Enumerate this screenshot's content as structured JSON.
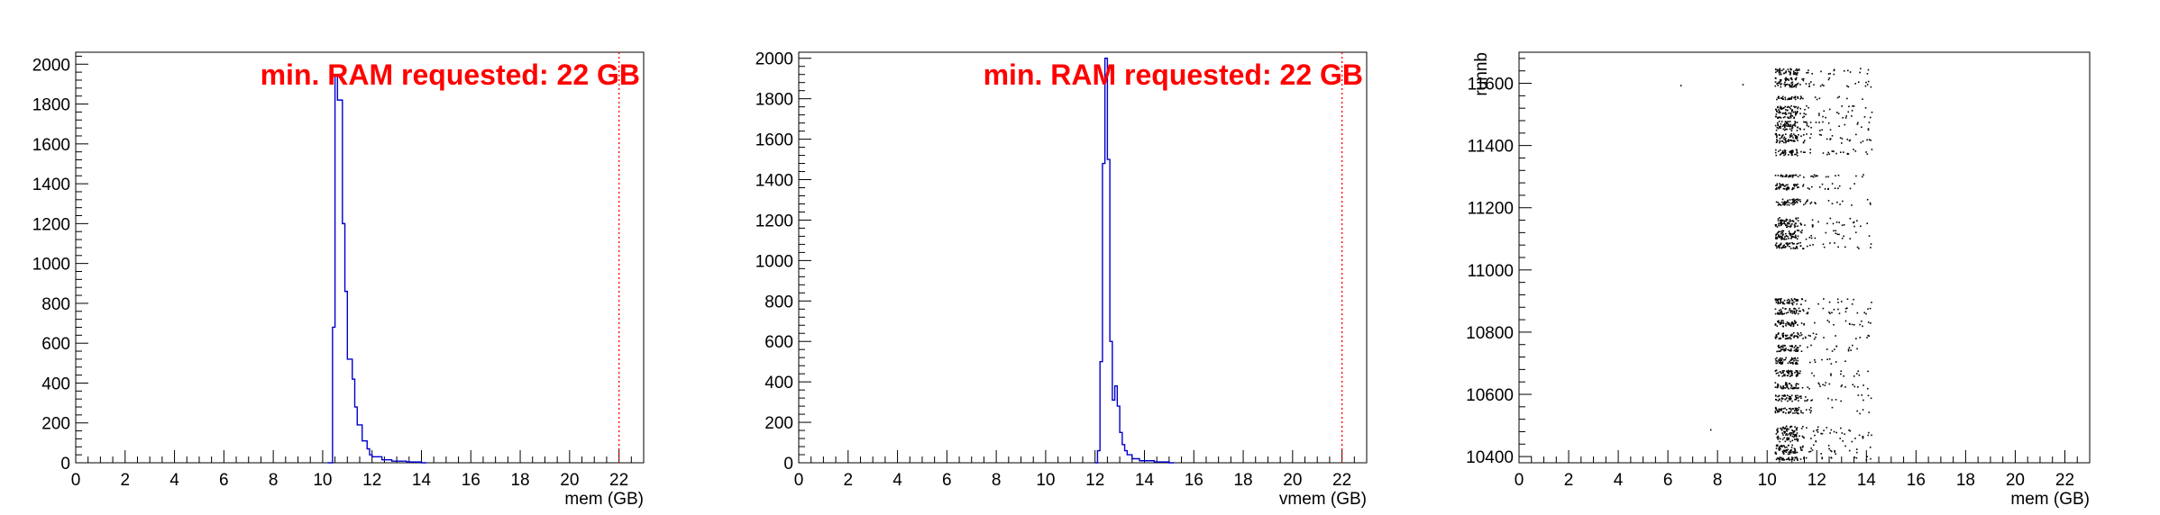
{
  "chart_data": [
    {
      "type": "histogram",
      "xlabel": "mem (GB)",
      "ylabel": "",
      "xlim": [
        0,
        23
      ],
      "ylim": [
        0,
        2060
      ],
      "x_ticks": [
        "0",
        "2",
        "4",
        "6",
        "8",
        "10",
        "12",
        "14",
        "16",
        "18",
        "20",
        "22"
      ],
      "y_ticks": [
        "0",
        "200",
        "400",
        "600",
        "800",
        "1000",
        "1200",
        "1400",
        "1600",
        "1800",
        "2000"
      ],
      "bin_width": 0.2,
      "bins": [
        {
          "x": 10.2,
          "y": 0
        },
        {
          "x": 10.4,
          "y": 680
        },
        {
          "x": 10.5,
          "y": 1940
        },
        {
          "x": 10.6,
          "y": 1820
        },
        {
          "x": 10.8,
          "y": 1200
        },
        {
          "x": 10.9,
          "y": 860
        },
        {
          "x": 11.0,
          "y": 520
        },
        {
          "x": 11.2,
          "y": 420
        },
        {
          "x": 11.3,
          "y": 280
        },
        {
          "x": 11.4,
          "y": 190
        },
        {
          "x": 11.6,
          "y": 110
        },
        {
          "x": 11.8,
          "y": 70
        },
        {
          "x": 11.9,
          "y": 40
        },
        {
          "x": 12.0,
          "y": 30
        },
        {
          "x": 12.4,
          "y": 15
        },
        {
          "x": 12.8,
          "y": 8
        },
        {
          "x": 13.4,
          "y": 4
        },
        {
          "x": 14.0,
          "y": 0
        }
      ],
      "threshold": {
        "x": 22,
        "color": "#ff0000",
        "style": "dotted"
      },
      "annotation": {
        "text": "min. RAM requested: 22 GB",
        "color": "#ff0000"
      },
      "line_color": "#0000cc",
      "grid": false
    },
    {
      "type": "histogram",
      "xlabel": "vmem (GB)",
      "ylabel": "",
      "xlim": [
        0,
        23
      ],
      "ylim": [
        0,
        2030
      ],
      "x_ticks": [
        "0",
        "2",
        "4",
        "6",
        "8",
        "10",
        "12",
        "14",
        "16",
        "18",
        "20",
        "22"
      ],
      "y_ticks": [
        "0",
        "200",
        "400",
        "600",
        "800",
        "1000",
        "1200",
        "1400",
        "1600",
        "1800",
        "2000"
      ],
      "bin_width": 0.2,
      "bins": [
        {
          "x": 12.0,
          "y": 0
        },
        {
          "x": 12.1,
          "y": 60
        },
        {
          "x": 12.2,
          "y": 500
        },
        {
          "x": 12.3,
          "y": 1480
        },
        {
          "x": 12.4,
          "y": 2000
        },
        {
          "x": 12.5,
          "y": 1500
        },
        {
          "x": 12.6,
          "y": 600
        },
        {
          "x": 12.7,
          "y": 310
        },
        {
          "x": 12.8,
          "y": 380
        },
        {
          "x": 12.9,
          "y": 280
        },
        {
          "x": 13.0,
          "y": 150
        },
        {
          "x": 13.1,
          "y": 90
        },
        {
          "x": 13.2,
          "y": 60
        },
        {
          "x": 13.3,
          "y": 40
        },
        {
          "x": 13.5,
          "y": 20
        },
        {
          "x": 13.8,
          "y": 10
        },
        {
          "x": 14.4,
          "y": 4
        },
        {
          "x": 15.0,
          "y": 0
        }
      ],
      "threshold": {
        "x": 22,
        "color": "#ff0000",
        "style": "dotted"
      },
      "annotation": {
        "text": "min. RAM requested: 22 GB",
        "color": "#ff0000"
      },
      "line_color": "#0000cc",
      "grid": false
    },
    {
      "type": "scatter",
      "xlabel": "mem (GB)",
      "ylabel": "runnb",
      "xlim": [
        0,
        23
      ],
      "ylim": [
        10380,
        11700
      ],
      "x_ticks": [
        "0",
        "2",
        "4",
        "6",
        "8",
        "10",
        "12",
        "14",
        "16",
        "18",
        "20",
        "22"
      ],
      "y_ticks": [
        "10400",
        "10600",
        "10800",
        "11000",
        "11200",
        "11400",
        "11600"
      ],
      "run_bands": [
        [
          10390,
          10400
        ],
        [
          10410,
          10440
        ],
        [
          10450,
          10500
        ],
        [
          10540,
          10560
        ],
        [
          10580,
          10600
        ],
        [
          10620,
          10640
        ],
        [
          10660,
          10680
        ],
        [
          10700,
          10720
        ],
        [
          10740,
          10760
        ],
        [
          10780,
          10800
        ],
        [
          10820,
          10840
        ],
        [
          10860,
          10880
        ],
        [
          10890,
          10910
        ],
        [
          11070,
          11090
        ],
        [
          11100,
          11130
        ],
        [
          11140,
          11170
        ],
        [
          11210,
          11230
        ],
        [
          11260,
          11280
        ],
        [
          11300,
          11310
        ],
        [
          11370,
          11390
        ],
        [
          11410,
          11440
        ],
        [
          11450,
          11480
        ],
        [
          11490,
          11530
        ],
        [
          11550,
          11560
        ],
        [
          11590,
          11620
        ],
        [
          11630,
          11650
        ]
      ],
      "x_core": [
        10.3,
        11.2
      ],
      "x_tail_max": 14.2,
      "point_color": "#000000",
      "grid": false
    }
  ]
}
